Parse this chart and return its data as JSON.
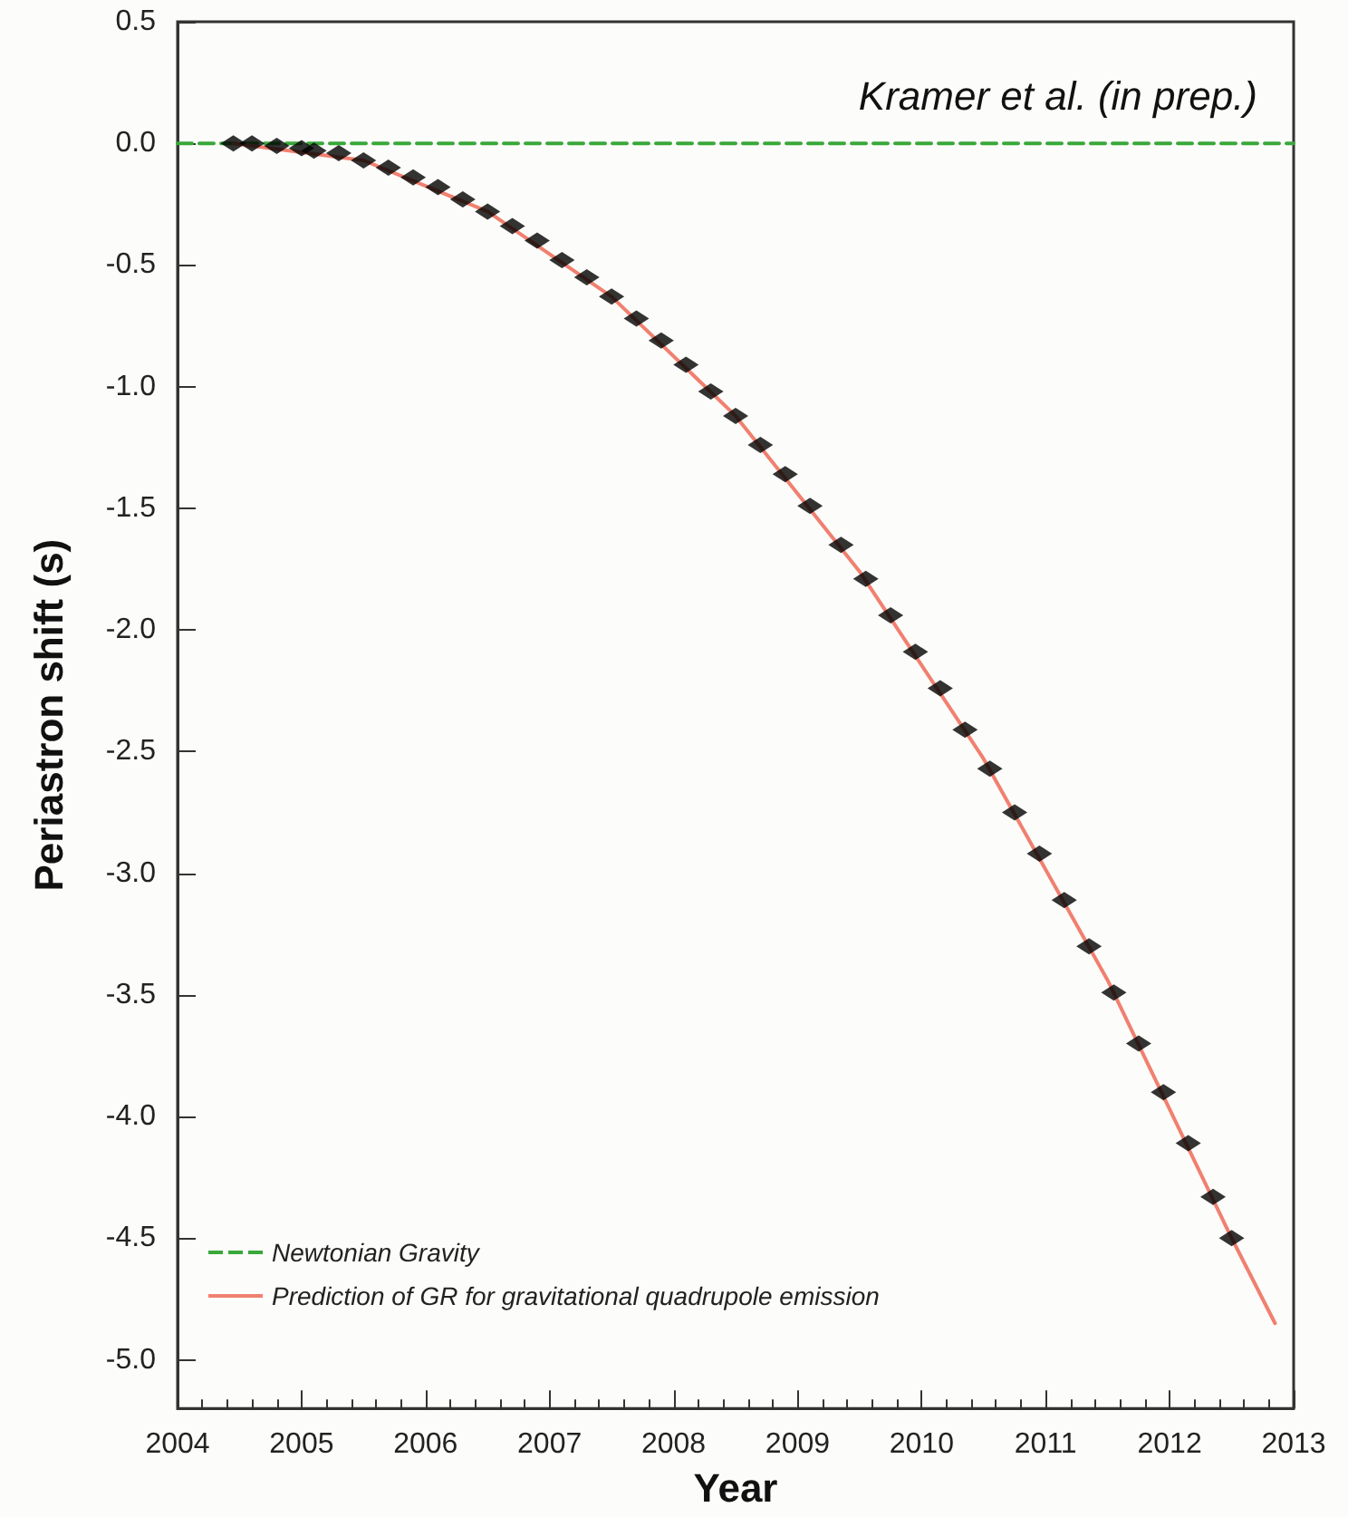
{
  "chart_data": {
    "type": "scatter",
    "xlabel": "Year",
    "ylabel": "Periastron shift (s)",
    "annotations": [
      "Kramer et al. (in prep.)"
    ],
    "xlim": [
      2004,
      2013
    ],
    "xticks": [
      2004,
      2005,
      2006,
      2007,
      2008,
      2009,
      2010,
      2011,
      2012,
      2013
    ],
    "ylim": [
      -5.2,
      0.5
    ],
    "yticks": [
      {
        "value": -5,
        "label": "-5.0"
      },
      -4.5,
      {
        "value": -4,
        "label": "-4.0"
      },
      -3.5,
      {
        "value": -3,
        "label": "-3.0"
      },
      -2.5,
      {
        "value": -2,
        "label": "-2.0"
      },
      -1.5,
      {
        "value": -1,
        "label": "-1.0"
      },
      -0.5,
      {
        "value": 0,
        "label": "0.0"
      },
      0.5
    ],
    "grid": false,
    "legend": "bottom left",
    "series": [
      {
        "name": "Newtonian Gravity",
        "type": "line",
        "color": "#3aa83a",
        "line_style": "dashed",
        "marker": "none",
        "x": [
          2004,
          2013
        ],
        "values": [
          0,
          0
        ]
      },
      {
        "name": "Prediction of GR for gravitational quadrupole emission",
        "type": "line",
        "color": "#f08070",
        "line_style": "solid",
        "marker": "none",
        "x": [
          2004.45,
          2005.5,
          2006.5,
          2007.5,
          2008.5,
          2009.5,
          2010.5,
          2011.5,
          2012.5,
          2012.85
        ],
        "values": [
          0,
          -0.07,
          -0.28,
          -0.63,
          -1.12,
          -1.76,
          -2.53,
          -3.44,
          -4.5,
          -4.85
        ]
      },
      {
        "color": "#000000",
        "marker": "diamond",
        "x": [
          2004.45,
          2004.6,
          2004.8,
          2005.0,
          2005.1,
          2005.3,
          2005.5,
          2005.7,
          2005.9,
          2006.1,
          2006.3,
          2006.5,
          2006.7,
          2006.9,
          2007.1,
          2007.3,
          2007.5,
          2007.7,
          2007.9,
          2008.1,
          2008.3,
          2008.5,
          2008.7,
          2008.9,
          2009.1,
          2009.35,
          2009.55,
          2009.75,
          2009.95,
          2010.15,
          2010.35,
          2010.55,
          2010.75,
          2010.95,
          2011.15,
          2011.35,
          2011.55,
          2011.75,
          2011.95,
          2012.15,
          2012.35,
          2012.5
        ],
        "values": [
          0,
          0,
          -0.01,
          -0.02,
          -0.03,
          -0.04,
          -0.07,
          -0.1,
          -0.14,
          -0.18,
          -0.23,
          -0.28,
          -0.34,
          -0.4,
          -0.48,
          -0.55,
          -0.63,
          -0.72,
          -0.81,
          -0.91,
          -1.02,
          -1.12,
          -1.24,
          -1.36,
          -1.49,
          -1.65,
          -1.79,
          -1.94,
          -2.09,
          -2.24,
          -2.41,
          -2.57,
          -2.75,
          -2.92,
          -3.11,
          -3.3,
          -3.49,
          -3.7,
          -3.9,
          -4.11,
          -4.33,
          -4.5
        ]
      }
    ]
  }
}
